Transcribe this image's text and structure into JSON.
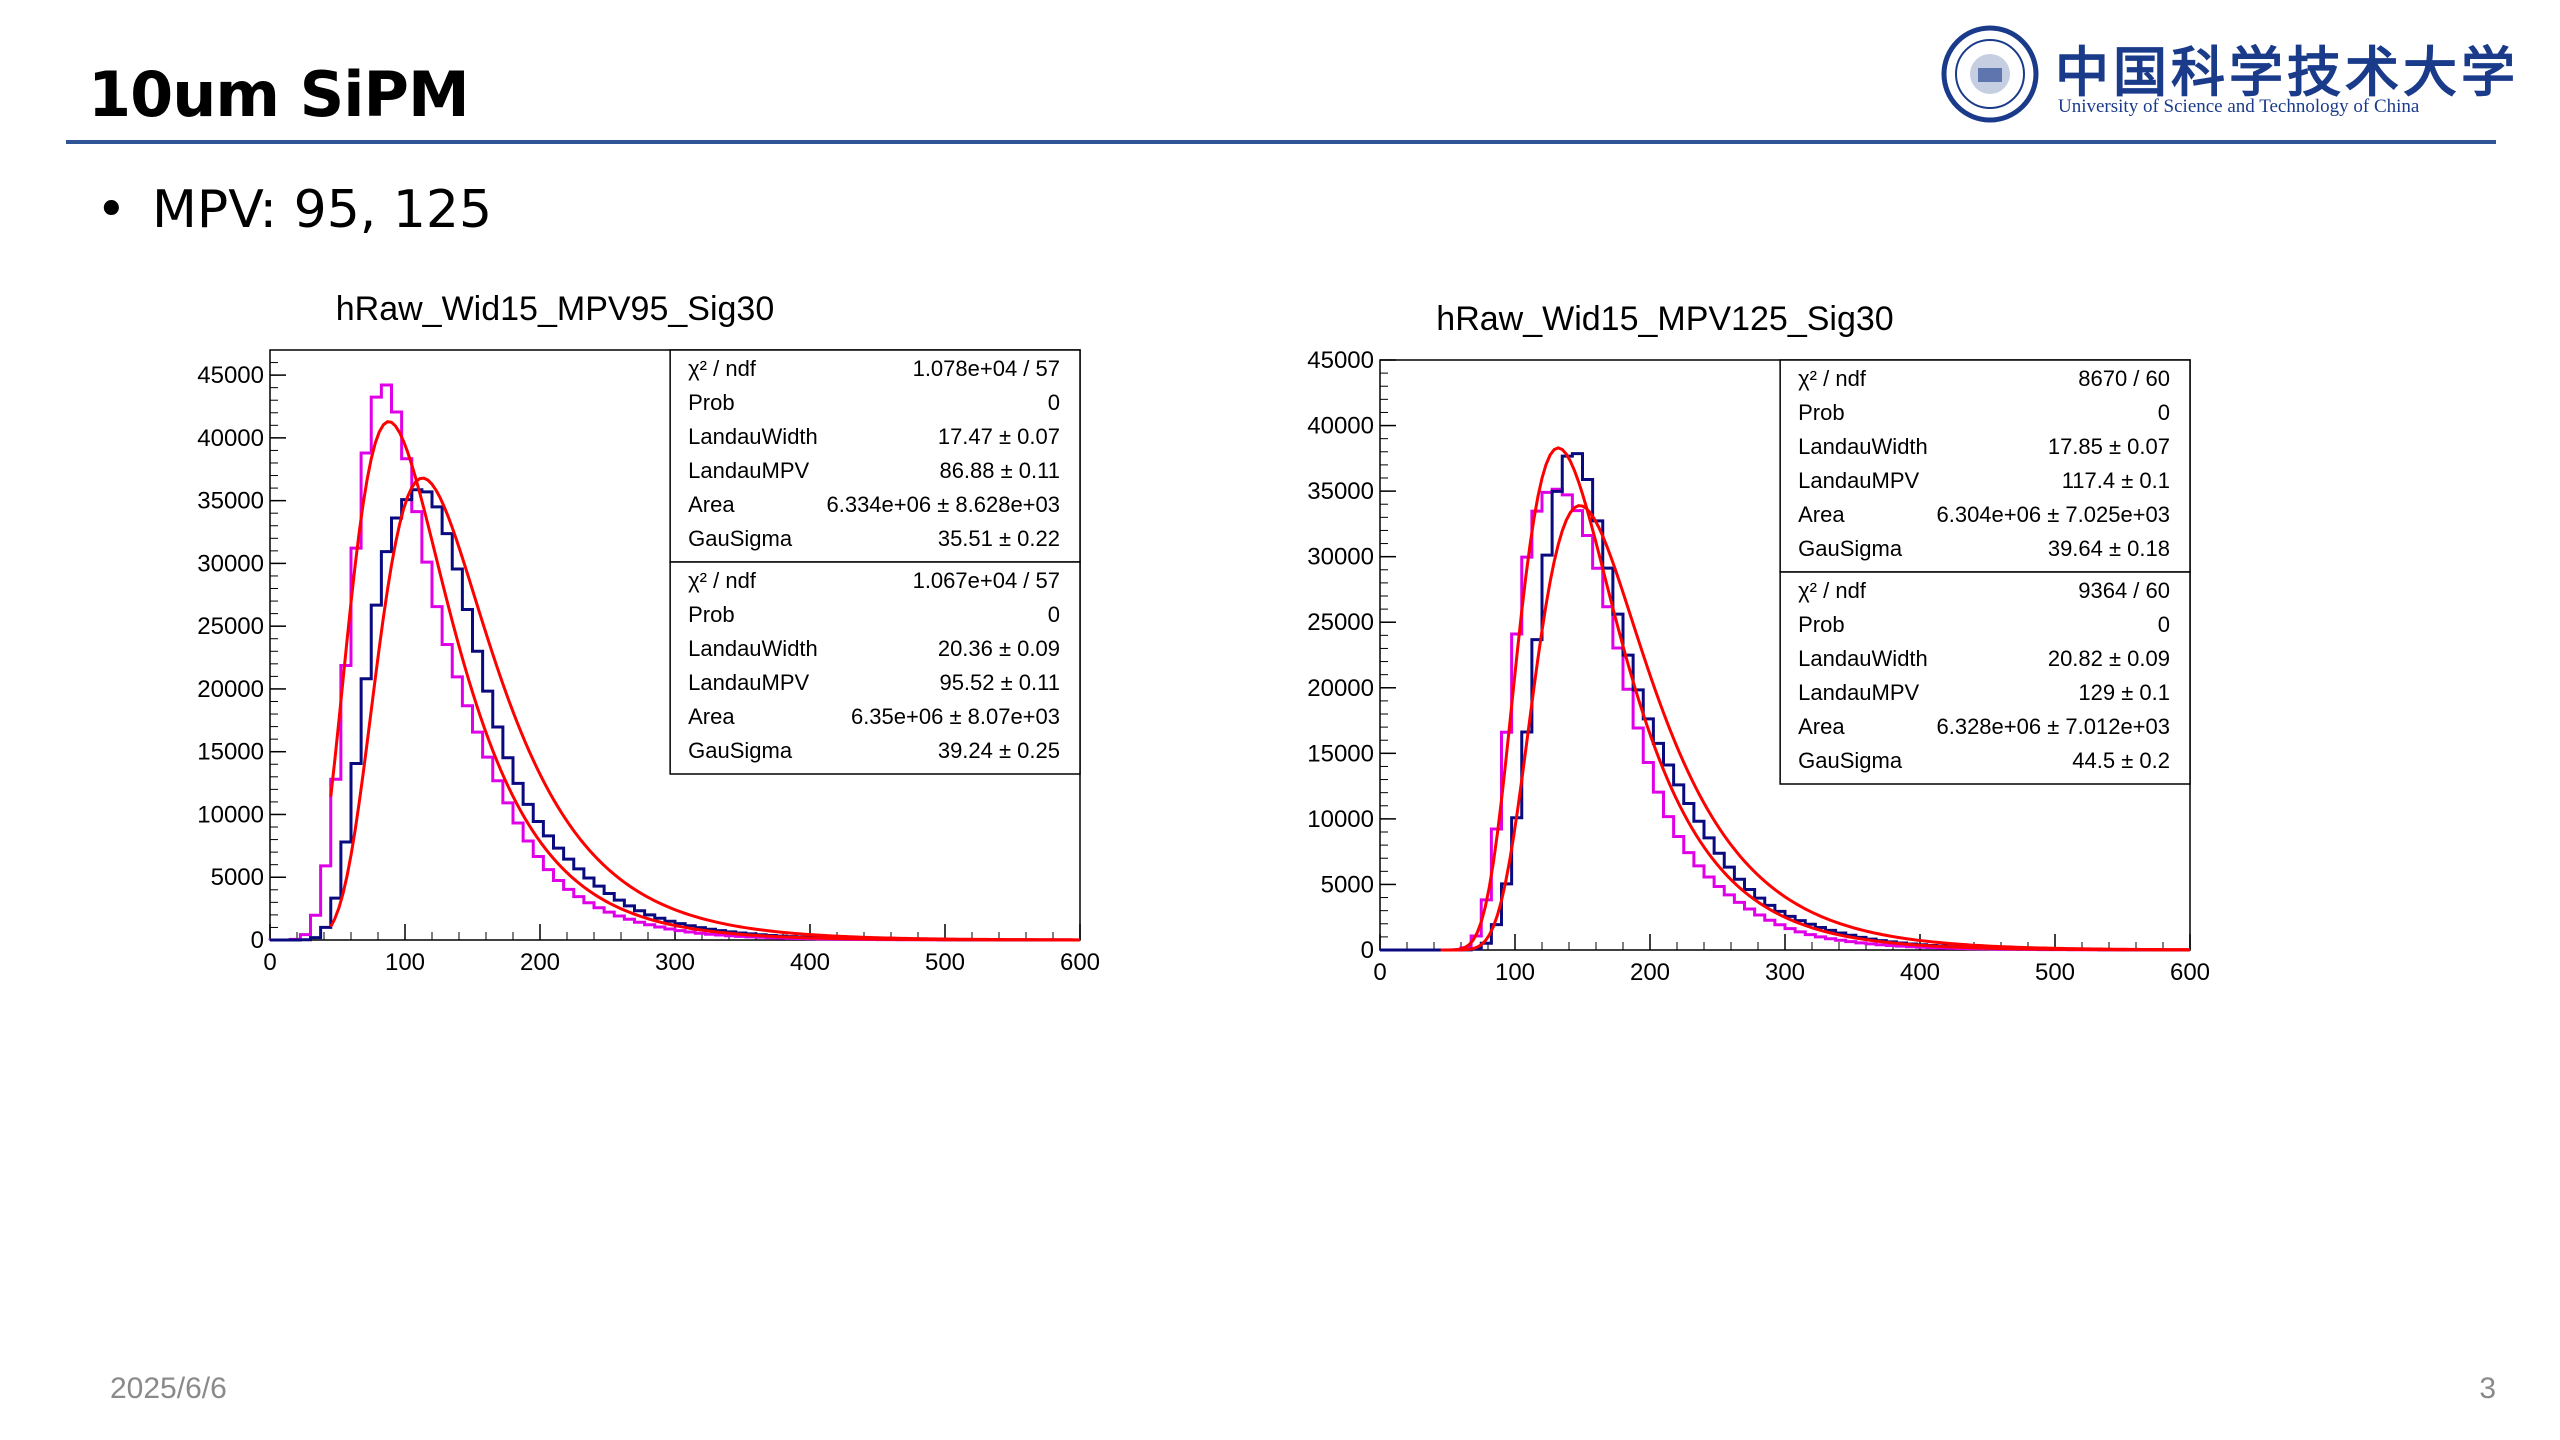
{
  "slide": {
    "title": "10um SiPM",
    "bullet": "MPV: 95, 125",
    "date": "2025/6/6",
    "page_number": "3",
    "accent_color": "#2f5597"
  },
  "logo": {
    "cn_text": "中国科学技术大学",
    "en_text": "University of Science and Technology of China",
    "color": "#1a3a8a",
    "icon": "university-seal-icon"
  },
  "chart_data": [
    {
      "type": "histogram",
      "title": "hRaw_Wid15_MPV95_Sig30",
      "xlim": [
        0,
        600
      ],
      "ylim": [
        0,
        47000
      ],
      "xticks": [
        0,
        100,
        200,
        300,
        400,
        500,
        600
      ],
      "yticks": [
        0,
        5000,
        10000,
        15000,
        20000,
        25000,
        30000,
        35000,
        40000,
        45000
      ],
      "series": [
        {
          "color": "#e000e8",
          "mpv": 87,
          "peak": 41300
        },
        {
          "color": "#0a0a80",
          "mpv": 103,
          "peak": 38000
        }
      ],
      "fits": [
        {
          "color": "#ff0000",
          "mpv": 88,
          "peak": 41300
        },
        {
          "color": "#ff0000",
          "mpv": 113,
          "peak": 36800
        }
      ],
      "stats_boxes": [
        {
          "rows": [
            [
              "χ² / ndf",
              "1.078e+04 / 57"
            ],
            [
              "Prob",
              "0"
            ],
            [
              "LandauWidth",
              "17.47 ± 0.07"
            ],
            [
              "LandauMPV",
              "86.88 ± 0.11"
            ],
            [
              "Area",
              "6.334e+06 ± 8.628e+03"
            ],
            [
              "GauSigma",
              "35.51 ± 0.22"
            ]
          ]
        },
        {
          "rows": [
            [
              "χ² / ndf",
              "1.067e+04 / 57"
            ],
            [
              "Prob",
              "0"
            ],
            [
              "LandauWidth",
              "20.36 ± 0.09"
            ],
            [
              "LandauMPV",
              "95.52 ± 0.11"
            ],
            [
              "Area",
              "6.35e+06 ± 8.07e+03"
            ],
            [
              "GauSigma",
              "39.24 ± 0.25"
            ]
          ]
        }
      ]
    },
    {
      "type": "histogram",
      "title": "hRaw_Wid15_MPV125_Sig30",
      "xlim": [
        0,
        600
      ],
      "ylim": [
        0,
        45000
      ],
      "xticks": [
        0,
        100,
        200,
        300,
        400,
        500,
        600
      ],
      "yticks": [
        0,
        5000,
        10000,
        15000,
        20000,
        25000,
        30000,
        35000,
        40000,
        45000
      ],
      "series": [
        {
          "color": "#e000e8",
          "mpv": 128,
          "peak": 38500
        },
        {
          "color": "#0a0a80",
          "mpv": 143,
          "peak": 35000
        }
      ],
      "fits": [
        {
          "color": "#ff0000",
          "mpv": 132,
          "peak": 38300
        },
        {
          "color": "#ff0000",
          "mpv": 148,
          "peak": 33900
        }
      ],
      "stats_boxes": [
        {
          "rows": [
            [
              "χ² / ndf",
              "8670 / 60"
            ],
            [
              "Prob",
              "0"
            ],
            [
              "LandauWidth",
              "17.85 ± 0.07"
            ],
            [
              "LandauMPV",
              "117.4 ± 0.1"
            ],
            [
              "Area",
              "6.304e+06 ± 7.025e+03"
            ],
            [
              "GauSigma",
              "39.64 ± 0.18"
            ]
          ]
        },
        {
          "rows": [
            [
              "χ² / ndf",
              "9364 / 60"
            ],
            [
              "Prob",
              "0"
            ],
            [
              "LandauWidth",
              "20.82 ± 0.09"
            ],
            [
              "LandauMPV",
              "129 ± 0.1"
            ],
            [
              "Area",
              "6.328e+06 ± 7.012e+03"
            ],
            [
              "GauSigma",
              "44.5 ± 0.2"
            ]
          ]
        }
      ]
    }
  ]
}
